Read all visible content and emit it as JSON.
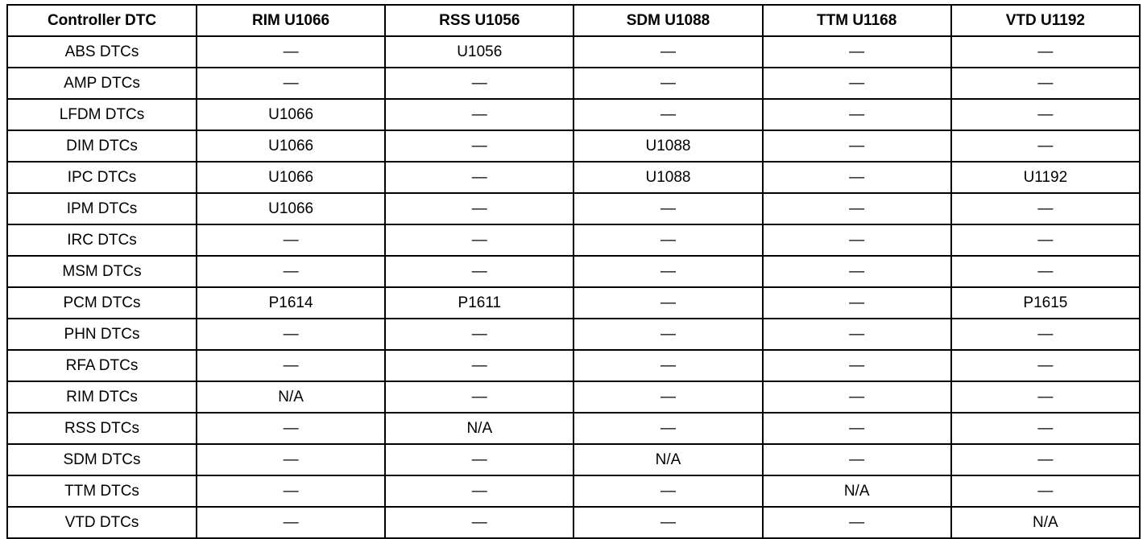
{
  "table": {
    "headers": [
      "Controller DTC",
      "RIM U1066",
      "RSS U1056",
      "SDM U1088",
      "TTM U1168",
      "VTD U1192"
    ],
    "rows": [
      [
        "ABS DTCs",
        "—",
        "U1056",
        "—",
        "—",
        "—"
      ],
      [
        "AMP DTCs",
        "—",
        "—",
        "—",
        "—",
        "—"
      ],
      [
        "LFDM DTCs",
        "U1066",
        "—",
        "—",
        "—",
        "—"
      ],
      [
        "DIM DTCs",
        "U1066",
        "—",
        "U1088",
        "—",
        "—"
      ],
      [
        "IPC DTCs",
        "U1066",
        "—",
        "U1088",
        "—",
        "U1192"
      ],
      [
        "IPM DTCs",
        "U1066",
        "—",
        "—",
        "—",
        "—"
      ],
      [
        "IRC DTCs",
        "—",
        "—",
        "—",
        "—",
        "—"
      ],
      [
        "MSM DTCs",
        "—",
        "—",
        "—",
        "—",
        "—"
      ],
      [
        "PCM DTCs",
        "P1614",
        "P1611",
        "—",
        "—",
        "P1615"
      ],
      [
        "PHN DTCs",
        "—",
        "—",
        "—",
        "—",
        "—"
      ],
      [
        "RFA DTCs",
        "—",
        "—",
        "—",
        "—",
        "—"
      ],
      [
        "RIM DTCs",
        "N/A",
        "—",
        "—",
        "—",
        "—"
      ],
      [
        "RSS DTCs",
        "—",
        "N/A",
        "—",
        "—",
        "—"
      ],
      [
        "SDM DTCs",
        "—",
        "—",
        "N/A",
        "—",
        "—"
      ],
      [
        "TTM DTCs",
        "—",
        "—",
        "—",
        "N/A",
        "—"
      ],
      [
        "VTD DTCs",
        "—",
        "—",
        "—",
        "—",
        "N/A"
      ]
    ]
  }
}
